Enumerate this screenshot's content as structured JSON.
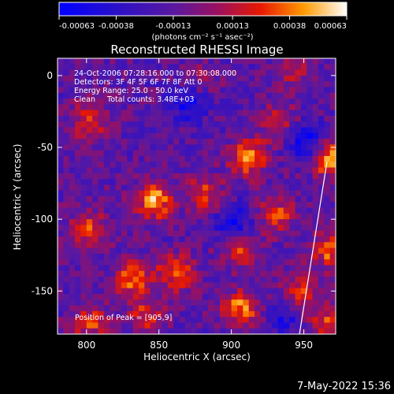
{
  "chart_data": {
    "type": "heatmap",
    "title": "Reconstructed RHESSI Image",
    "xlabel": "Heliocentric X (arcsec)",
    "ylabel": "Heliocentric Y (arcsec)",
    "xlim": [
      780,
      972
    ],
    "ylim": [
      -180,
      12
    ],
    "xticks": [
      800,
      850,
      900,
      950
    ],
    "yticks": [
      0,
      -50,
      -100,
      -150
    ],
    "colorbar": {
      "ticks": [
        "-0.00063",
        "-0.00038",
        "-0.00013",
        "0.00013",
        "0.00038",
        "0.00063"
      ],
      "range": [
        -0.00063,
        0.00063
      ],
      "units_label": "(photons cm⁻² s⁻¹ asec⁻²)"
    },
    "annotations": [
      "24-Oct-2006 07:28:16.000 to 07:30:08.000",
      "Detectors: 3F 4F 5F 6F 7F 8F Att 0",
      "Energy Range: 25.0 - 50.0 keV",
      "Clean     Total counts: 3.48E+03"
    ],
    "peak_label": "Position of Peak = [905,9]",
    "hotspots": [
      {
        "x": 845,
        "y": -85,
        "value": 0.00063
      },
      {
        "x": 910,
        "y": -55,
        "value": 0.0006
      },
      {
        "x": 965,
        "y": -55,
        "value": 0.00063
      },
      {
        "x": 800,
        "y": -30,
        "value": 0.0004
      },
      {
        "x": 800,
        "y": -105,
        "value": 0.00045
      },
      {
        "x": 880,
        "y": -80,
        "value": 0.0004
      },
      {
        "x": 905,
        "y": -120,
        "value": 0.0004
      },
      {
        "x": 905,
        "y": -160,
        "value": 0.00055
      },
      {
        "x": 860,
        "y": -135,
        "value": 0.0005
      },
      {
        "x": 830,
        "y": -140,
        "value": 0.0005
      },
      {
        "x": 930,
        "y": -95,
        "value": 0.0004
      },
      {
        "x": 945,
        "y": -150,
        "value": 0.00045
      },
      {
        "x": 965,
        "y": -120,
        "value": 0.00045
      },
      {
        "x": 965,
        "y": -170,
        "value": 0.0004
      },
      {
        "x": 800,
        "y": -170,
        "value": 0.0004
      },
      {
        "x": 930,
        "y": -30,
        "value": 0.0003
      },
      {
        "x": 875,
        "y": -5,
        "value": 0.0003
      },
      {
        "x": 940,
        "y": 5,
        "value": 0.0003
      },
      {
        "x": 840,
        "y": -165,
        "value": 0.00035
      }
    ],
    "coldspots": [
      {
        "x": 870,
        "y": -15,
        "value": -0.0005
      },
      {
        "x": 900,
        "y": -100,
        "value": -0.0004
      },
      {
        "x": 950,
        "y": -45,
        "value": -0.00045
      },
      {
        "x": 935,
        "y": -165,
        "value": -0.00035
      }
    ],
    "limb_line": [
      [
        947,
        -180
      ],
      [
        966,
        -60
      ]
    ]
  },
  "footer_date": "7-May-2022 15:36"
}
